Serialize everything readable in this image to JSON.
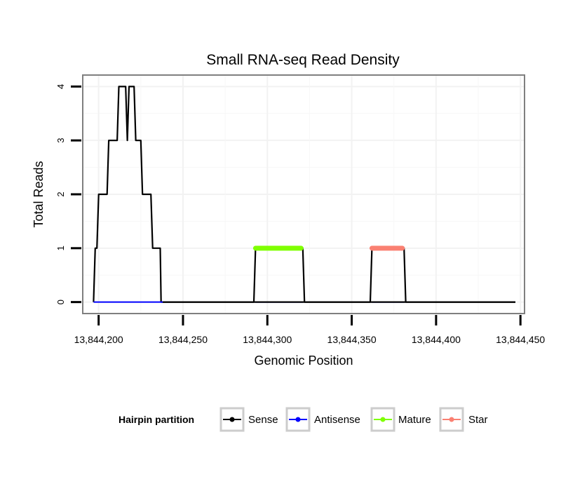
{
  "chart_data": {
    "type": "line",
    "title": "Small RNA-seq Read Density",
    "xlabel": "Genomic Position",
    "ylabel": "Total Reads",
    "xlim": [
      13844191,
      13844452
    ],
    "ylim": [
      -0.2,
      4.2
    ],
    "x_ticks": [
      13844200,
      13844250,
      13844300,
      13844350,
      13844400,
      13844450
    ],
    "x_tick_labels": [
      "13,844,200",
      "13,844,250",
      "13,844,300",
      "13,844,350",
      "13,844,400",
      "13,844,450"
    ],
    "y_ticks": [
      0,
      1,
      2,
      3,
      4
    ],
    "y_tick_labels": [
      "0",
      "1",
      "2",
      "3",
      "4"
    ],
    "grid": true,
    "legend": {
      "title": "Hairpin partition",
      "position": "bottom",
      "entries": [
        "Sense",
        "Antisense",
        "Mature",
        "Star"
      ]
    },
    "series": [
      {
        "name": "Sense",
        "color": "#000000",
        "x": [
          13844197,
          13844198,
          13844199,
          13844200,
          13844202,
          13844203,
          13844205,
          13844206,
          13844208,
          13844209,
          13844211,
          13844212,
          13844214,
          13844215,
          13844216,
          13844217,
          13844218,
          13844219,
          13844220,
          13844221,
          13844222,
          13844223,
          13844225,
          13844226,
          13844228,
          13844229,
          13844231,
          13844232,
          13844233,
          13844234,
          13844236,
          13844236.5,
          13844237,
          13844238,
          13844292,
          13844293,
          13844294,
          13844320,
          13844321,
          13844322,
          13844361,
          13844362,
          13844363,
          13844380,
          13844381,
          13844382,
          13844447
        ],
        "values": [
          0,
          1,
          1,
          2,
          2,
          2,
          2,
          3,
          3,
          3,
          3,
          4,
          4,
          4,
          4,
          3,
          4,
          4,
          4,
          4,
          3,
          3,
          3,
          2,
          2,
          2,
          2,
          1,
          1,
          1,
          1,
          1,
          0,
          0,
          0,
          1,
          1,
          1,
          1,
          0,
          0,
          1,
          1,
          1,
          1,
          0,
          0
        ]
      },
      {
        "name": "Antisense",
        "color": "#0000ff",
        "segments": [
          [
            13844197,
            13844238
          ],
          [
            13844293,
            13844321
          ],
          [
            13844362,
            13844381
          ]
        ],
        "value": 0
      },
      {
        "name": "Mature",
        "color": "#7fff00",
        "segments": [
          [
            13844293,
            13844320
          ]
        ],
        "value": 1
      },
      {
        "name": "Star",
        "color": "#fa8072",
        "segments": [
          [
            13844362,
            13844380
          ]
        ],
        "value": 1
      }
    ]
  }
}
